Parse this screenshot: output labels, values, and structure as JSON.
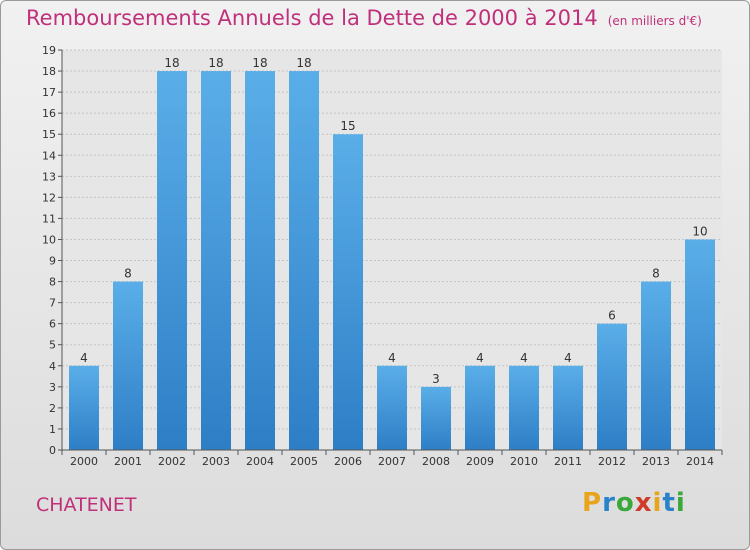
{
  "title": "Remboursements Annuels de la Dette de 2000 à 2014",
  "subtitle": "(en milliers d'€)",
  "commune": "CHATENET",
  "logo": {
    "text": "Proxiti",
    "colors": [
      "#e8a51c",
      "#2a83c8",
      "#3aa83a",
      "#d03a2a",
      "#e8a51c",
      "#2a83c8",
      "#3aa83a"
    ]
  },
  "colors": {
    "title": "#c0307a",
    "bar_light": "#5aaee8",
    "bar_dark": "#2e7ec6",
    "grid": "#bfbfbf",
    "background": "#e6e6e6"
  },
  "chart_data": {
    "type": "bar",
    "title": "Remboursements Annuels de la Dette de 2000 à 2014",
    "subtitle": "(en milliers d'€)",
    "categories": [
      "2000",
      "2001",
      "2002",
      "2003",
      "2004",
      "2005",
      "2006",
      "2007",
      "2008",
      "2009",
      "2010",
      "2011",
      "2012",
      "2013",
      "2014"
    ],
    "values": [
      4,
      8,
      18,
      18,
      18,
      18,
      15,
      4,
      3,
      4,
      4,
      4,
      6,
      8,
      10
    ],
    "ylim": [
      0,
      19
    ],
    "yticks": [
      0,
      1,
      2,
      3,
      4,
      5,
      6,
      7,
      8,
      9,
      10,
      11,
      12,
      13,
      14,
      15,
      16,
      17,
      18,
      19
    ],
    "xlabel": "",
    "ylabel": "",
    "grid": true,
    "data_labels": true
  }
}
